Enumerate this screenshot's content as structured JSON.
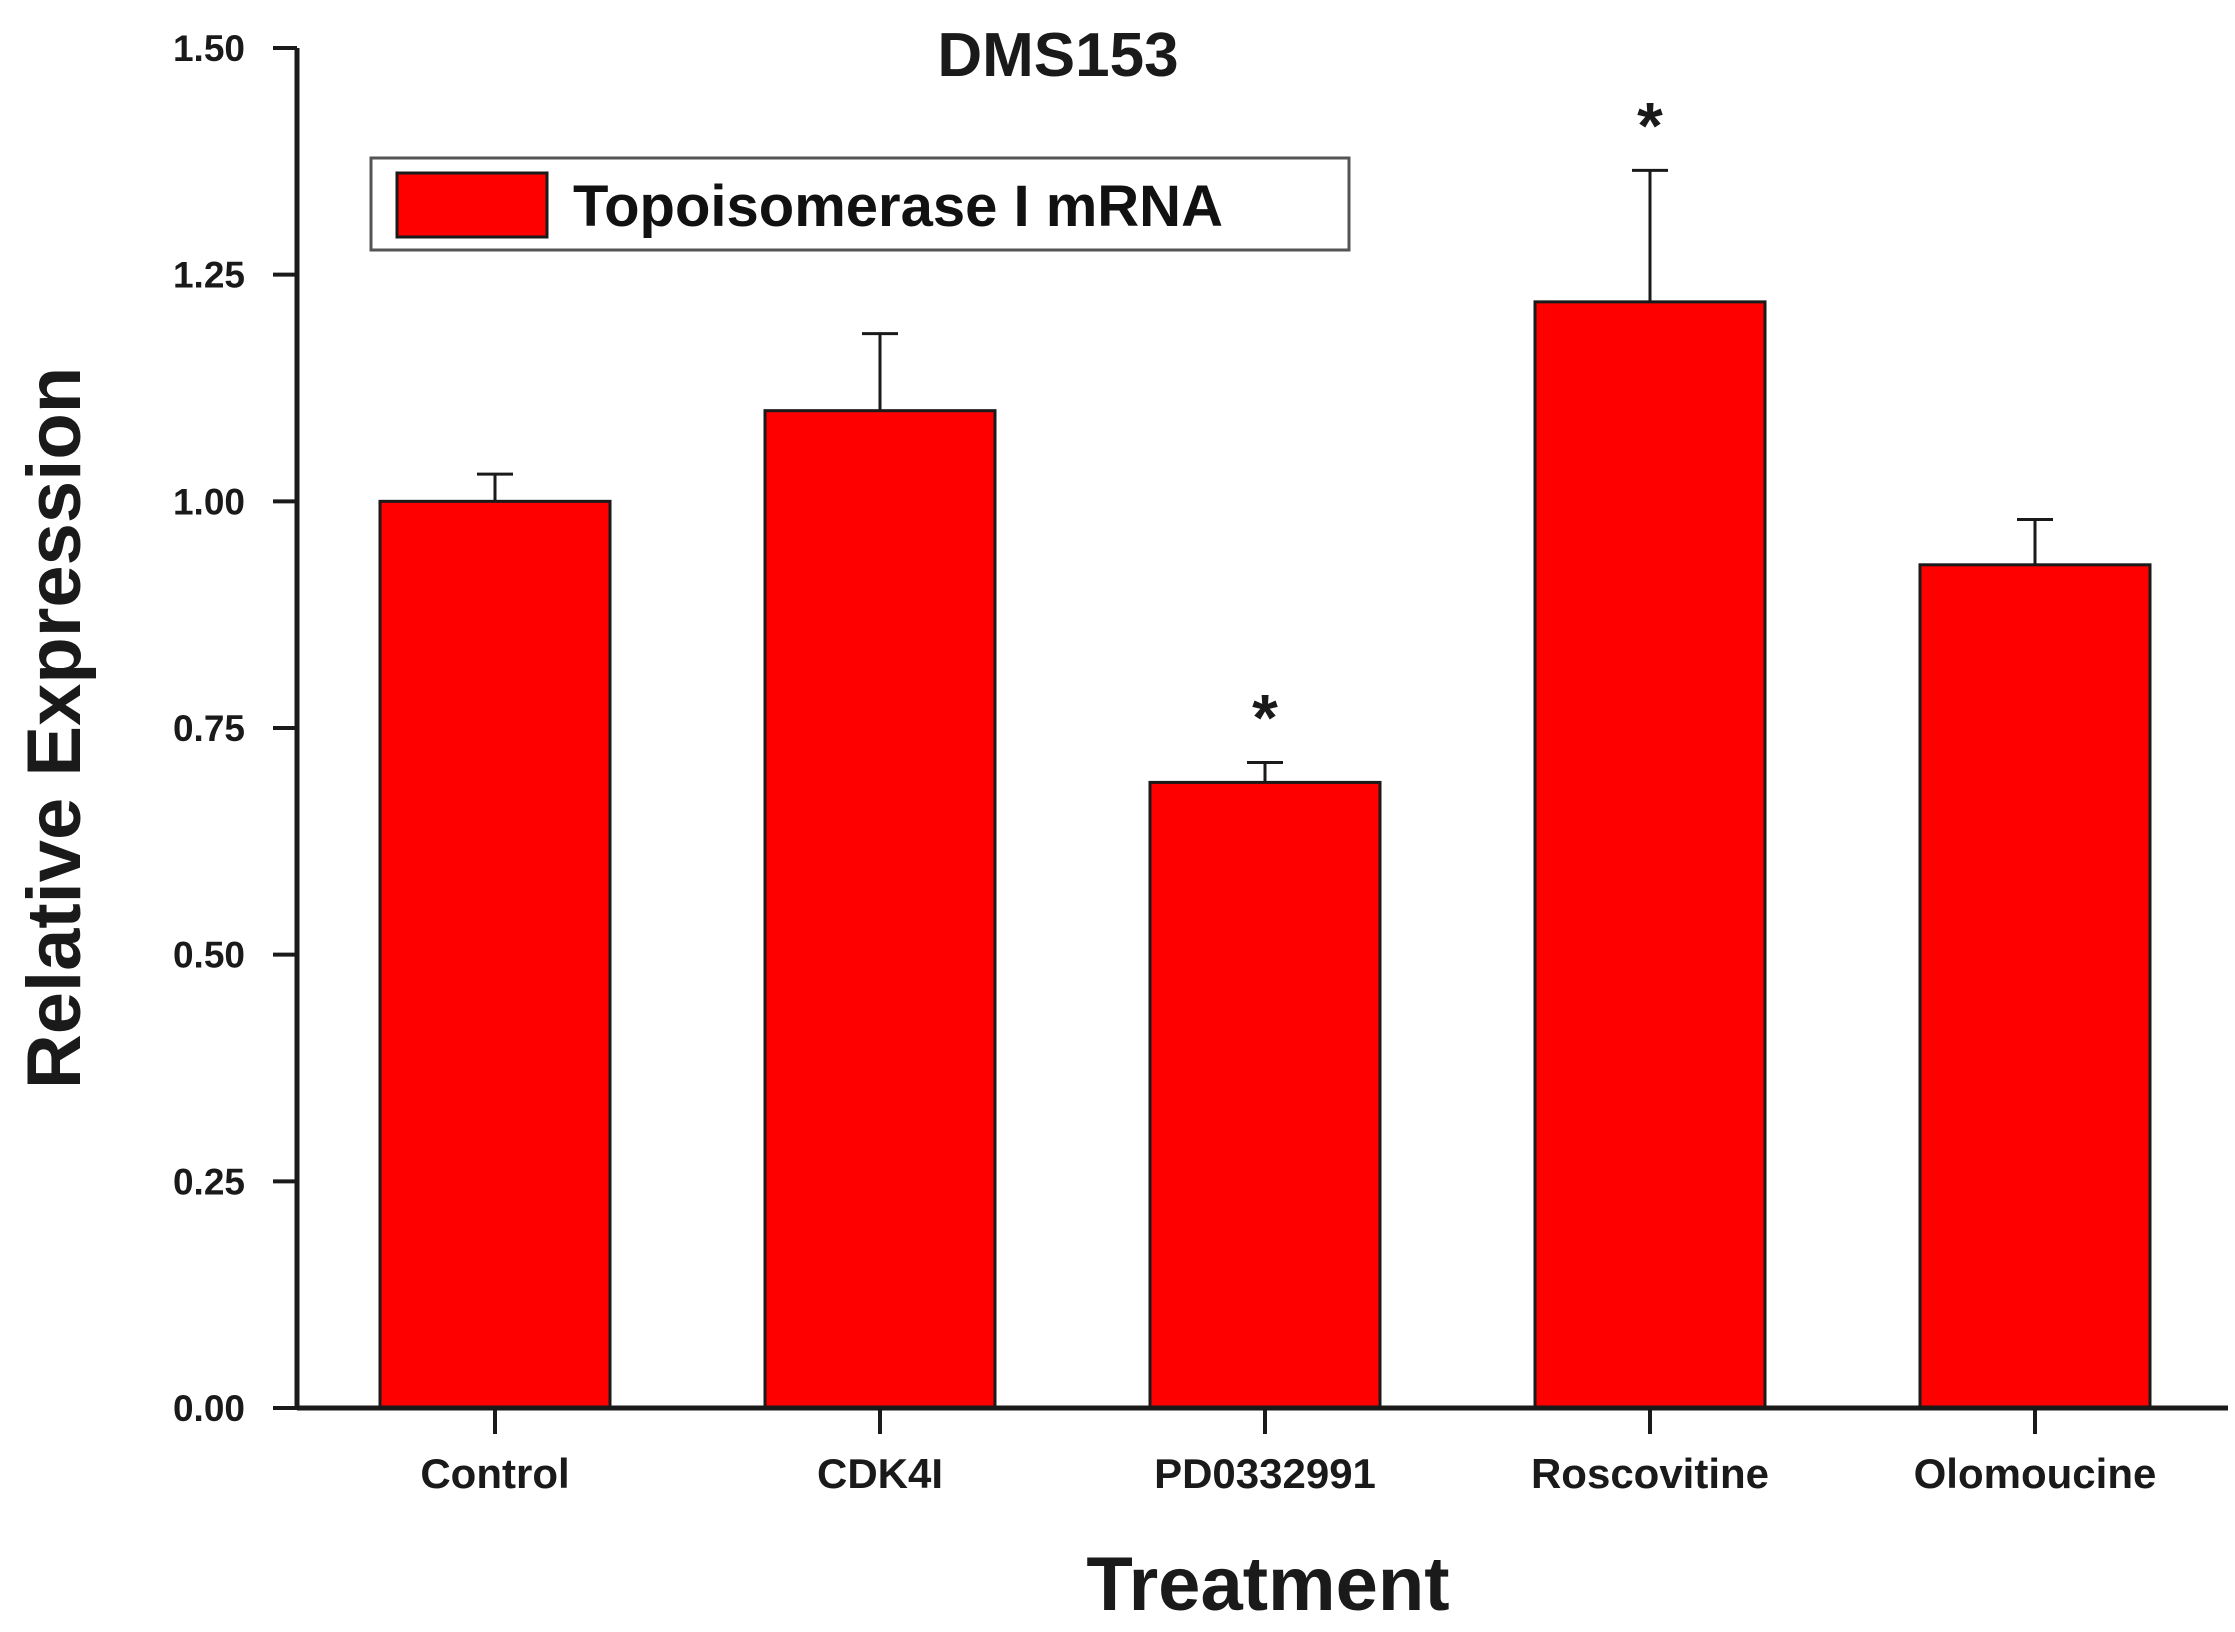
{
  "colors": {
    "bar_fill": "#ff0000",
    "bar_stroke": "#1a1a1a",
    "axis": "#1a1a1a",
    "background": "#ffffff"
  },
  "chart_data": {
    "type": "bar",
    "title": "DMS153",
    "xlabel": "Treatment",
    "ylabel": "Relative Expression",
    "ylim": [
      0,
      1.5
    ],
    "y_ticks": [
      0.0,
      0.25,
      0.5,
      0.75,
      1.0,
      1.25,
      1.5
    ],
    "y_tick_labels": [
      "0.00",
      "0.25",
      "0.50",
      "0.75",
      "1.00",
      "1.25",
      "1.50"
    ],
    "categories": [
      "Control",
      "CDK4I",
      "PD0332991",
      "Roscovitine",
      "Olomoucine"
    ],
    "series": [
      {
        "name": "Topoisomerase I mRNA",
        "values": [
          1.0,
          1.1,
          0.69,
          1.22,
          0.93
        ],
        "errors": [
          0.03,
          0.085,
          0.022,
          0.145,
          0.05
        ],
        "annotations": [
          "",
          "",
          "*",
          "*",
          ""
        ]
      }
    ],
    "legend_position": "top-left",
    "grid": false
  }
}
